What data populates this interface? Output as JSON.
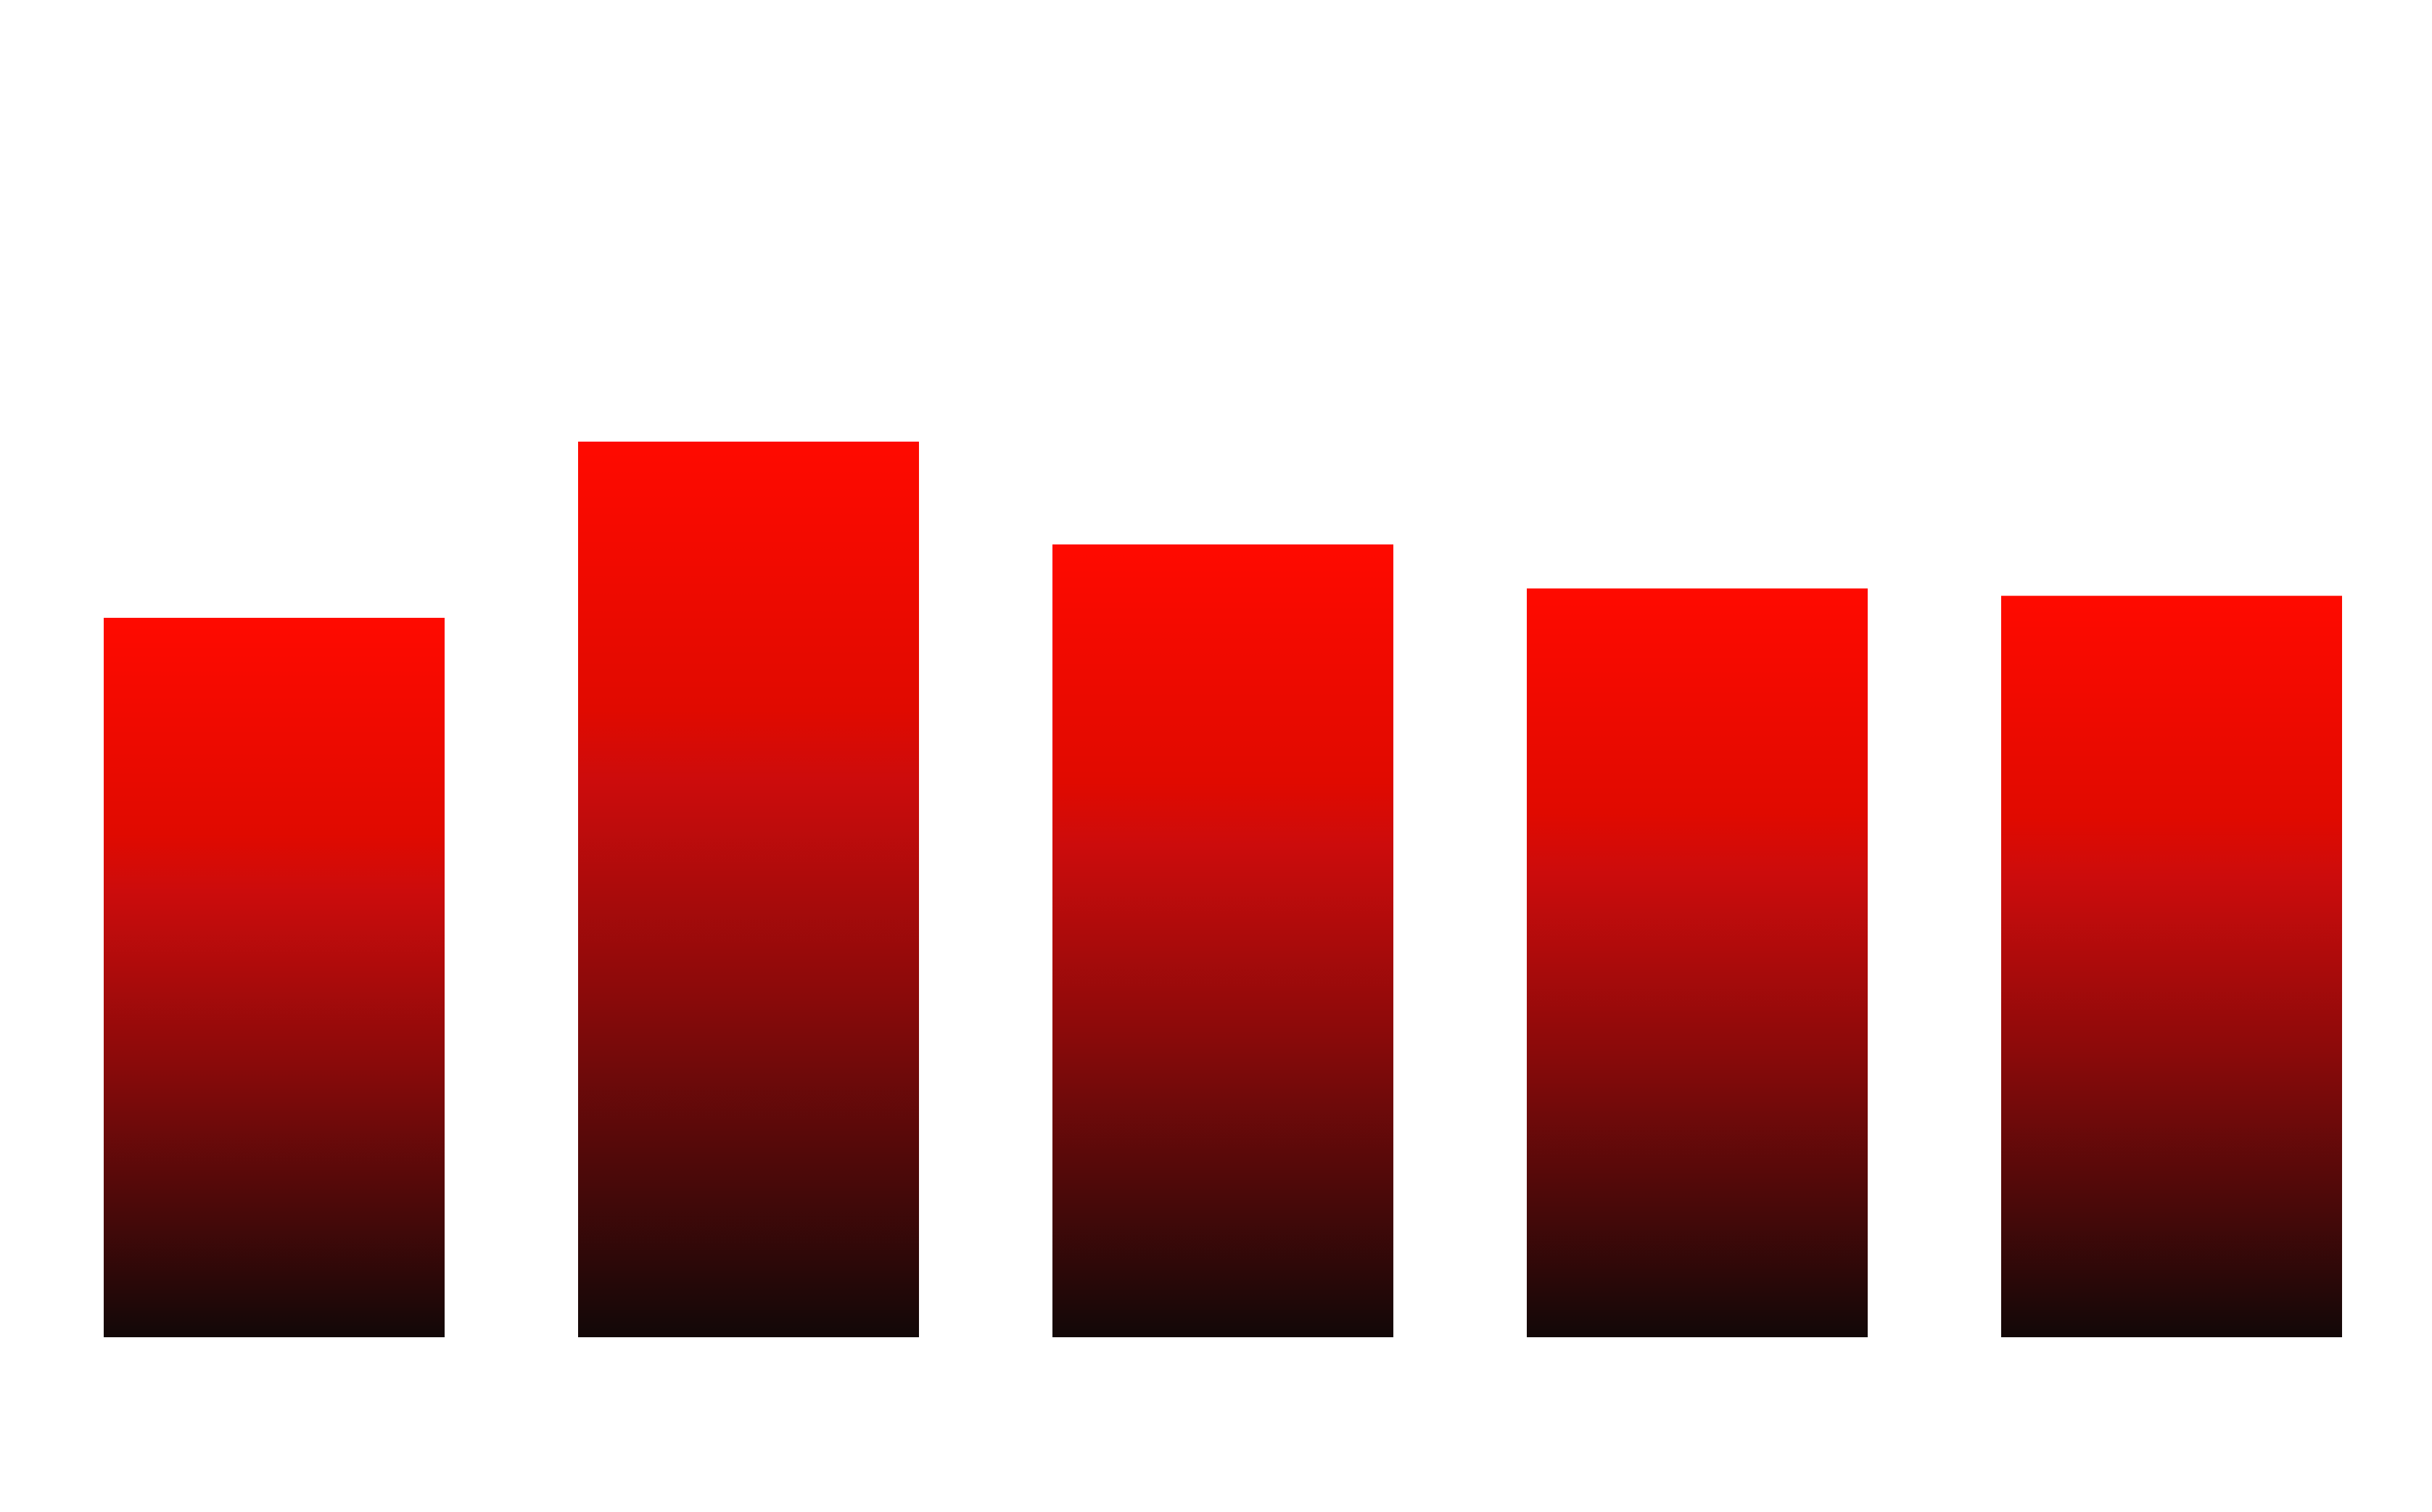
{
  "chart_data": {
    "type": "bar",
    "categories": [
      "",
      "",
      "",
      "",
      ""
    ],
    "values": [
      49,
      61,
      54,
      51,
      50.5
    ],
    "ylim": [
      0,
      100
    ],
    "grid": false,
    "title": "",
    "xlabel": "",
    "ylabel": "",
    "colors": {
      "bar_top": "#ff0a00",
      "bar_mid": "#cc0c0c",
      "bar_bottom": "#120808",
      "background": "#ffffff"
    }
  }
}
